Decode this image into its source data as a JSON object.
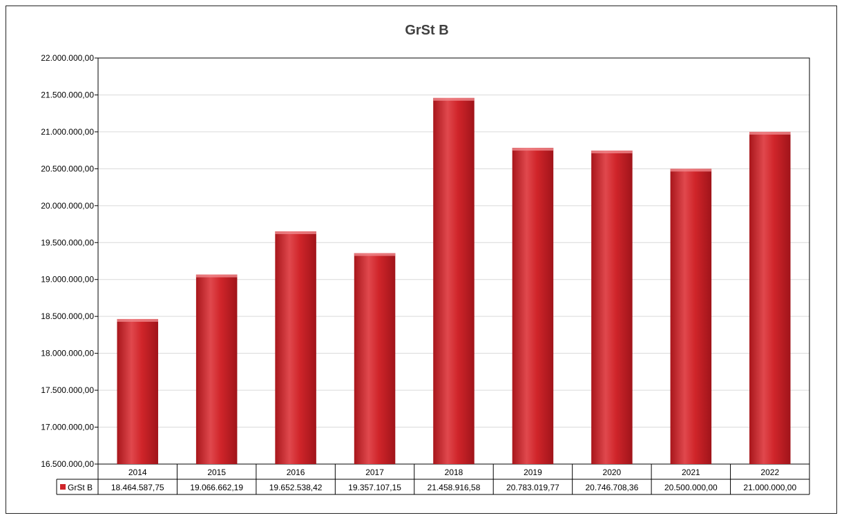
{
  "chart_data": {
    "type": "bar",
    "title": "GrSt B",
    "categories": [
      "2014",
      "2015",
      "2016",
      "2017",
      "2018",
      "2019",
      "2020",
      "2021",
      "2022"
    ],
    "series": [
      {
        "name": "GrSt B",
        "values": [
          18464587.75,
          19066662.19,
          19652538.42,
          19357107.15,
          21458916.58,
          20783019.77,
          20746708.36,
          20500000.0,
          21000000.0
        ],
        "value_labels": [
          "18.464.587,75",
          "19.066.662,19",
          "19.652.538,42",
          "19.357.107,15",
          "21.458.916,58",
          "20.783.019,77",
          "20.746.708,36",
          "20.500.000,00",
          "21.000.000,00"
        ]
      }
    ],
    "ylim": [
      16500000,
      22000000
    ],
    "ytick_labels": [
      "16.500.000,00",
      "17.000.000,00",
      "17.500.000,00",
      "18.000.000,00",
      "18.500.000,00",
      "19.000.000,00",
      "19.500.000,00",
      "20.000.000,00",
      "20.500.000,00",
      "21.000.000,00",
      "21.500.000,00",
      "22.000.000,00"
    ],
    "grid": true,
    "legend": "data-table",
    "data_table": true,
    "colors": {
      "bar": "#d0252a",
      "bar_light": "#e8565a",
      "bar_dark": "#9c1015",
      "grid": "#d9d9d9"
    }
  }
}
